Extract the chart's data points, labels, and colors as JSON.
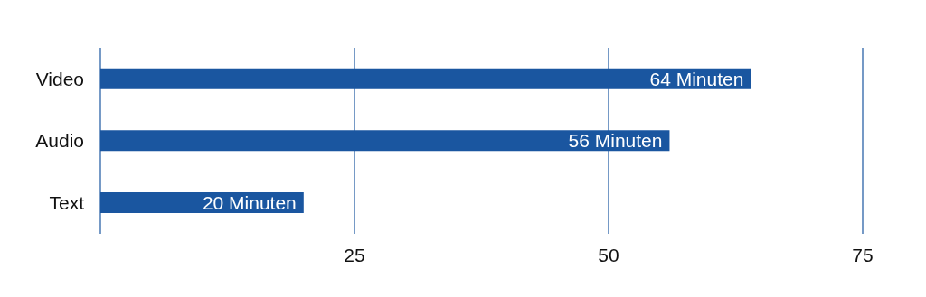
{
  "chart_data": {
    "type": "bar",
    "orientation": "horizontal",
    "categories": [
      "Video",
      "Audio",
      "Text"
    ],
    "values": [
      64,
      56,
      20
    ],
    "color": "#1a56a0",
    "value_labels": [
      "64 Minuten",
      "56 Minuten",
      "20 Minuten"
    ],
    "xlim": [
      0,
      75
    ],
    "xticks": [
      {
        "value": 0,
        "label": null
      },
      25,
      50,
      75
    ],
    "grid": "x"
  }
}
